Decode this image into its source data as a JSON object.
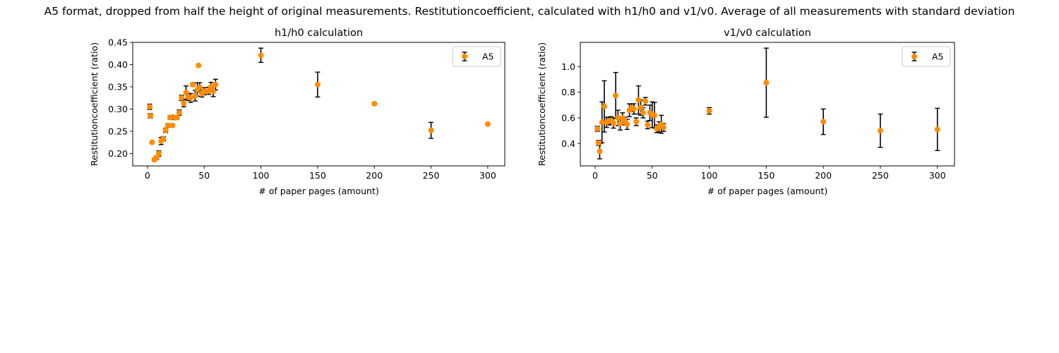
{
  "figure": {
    "suptitle": "A5 format, dropped from half the height of original measurements. Restitutioncoefficient, calculated with h1/h0 and v1/v0. Average of all measurements with standard deviation"
  },
  "colors": {
    "marker": "#ff8c00",
    "errorbar": "#000000",
    "axis": "#000000"
  },
  "chart_data": [
    {
      "type": "scatter",
      "title": "h1/h0 calculation",
      "xlabel": "# of paper pages (amount)",
      "ylabel": "Restitutioncoefficient (ratio)",
      "xlim": [
        -13,
        315
      ],
      "ylim": [
        0.172,
        0.45
      ],
      "xticks": [
        0,
        50,
        100,
        150,
        200,
        250,
        300
      ],
      "yticks": [
        0.2,
        0.25,
        0.3,
        0.35,
        0.4,
        0.45
      ],
      "ytick_labels": [
        "0.20",
        "0.25",
        "0.30",
        "0.35",
        "0.40",
        "0.45"
      ],
      "grid": false,
      "legend": {
        "position": "top-right",
        "entries": [
          "A5"
        ]
      },
      "series": [
        {
          "name": "A5",
          "x": [
            2,
            2.5,
            4,
            6,
            8,
            10,
            12,
            14,
            16,
            18,
            20,
            22,
            24,
            26,
            28,
            30,
            32,
            34,
            36,
            38,
            40,
            42,
            44,
            45,
            46,
            48,
            50,
            52,
            54,
            56,
            58,
            60,
            100,
            150,
            200,
            250,
            300
          ],
          "y": [
            0.305,
            0.285,
            0.225,
            0.186,
            0.19,
            0.2,
            0.228,
            0.233,
            0.252,
            0.263,
            0.281,
            0.263,
            0.281,
            0.281,
            0.292,
            0.325,
            0.313,
            0.337,
            0.327,
            0.325,
            0.355,
            0.33,
            0.344,
            0.398,
            0.349,
            0.335,
            0.34,
            0.339,
            0.341,
            0.35,
            0.34,
            0.355,
            0.421,
            0.355,
            0.312,
            0.252,
            0.266
          ],
          "err": [
            0.006,
            0.005,
            0.002,
            0.003,
            0.004,
            0.006,
            0.008,
            0.005,
            0.005,
            0.004,
            0.004,
            0.003,
            0.005,
            0.004,
            0.006,
            0.006,
            0.008,
            0.015,
            0.008,
            0.01,
            0.004,
            0.012,
            0.015,
            0.002,
            0.01,
            0.008,
            0.008,
            0.005,
            0.008,
            0.01,
            0.012,
            0.012,
            0.016,
            0.028,
            0.002,
            0.018,
            0.002
          ]
        }
      ]
    },
    {
      "type": "scatter",
      "title": "v1/v0 calculation",
      "xlabel": "# of paper pages (amount)",
      "ylabel": "Restitutioncoefficient (ratio)",
      "xlim": [
        -13,
        315
      ],
      "ylim": [
        0.225,
        1.19
      ],
      "xticks": [
        0,
        50,
        100,
        150,
        200,
        250,
        300
      ],
      "yticks": [
        0.4,
        0.6,
        0.8,
        1.0
      ],
      "ytick_labels": [
        "0.4",
        "0.6",
        "0.8",
        "1.0"
      ],
      "grid": false,
      "legend": {
        "position": "top-right",
        "entries": [
          "A5"
        ]
      },
      "series": [
        {
          "name": "A5",
          "x": [
            2,
            3,
            4,
            6,
            8,
            10,
            12,
            14,
            16,
            18,
            20,
            22,
            24,
            26,
            28,
            30,
            32,
            34,
            36,
            38,
            40,
            42,
            44,
            46,
            48,
            50,
            52,
            54,
            56,
            58,
            60,
            100,
            150,
            200,
            250,
            300
          ],
          "y": [
            0.515,
            0.405,
            0.34,
            0.565,
            0.69,
            0.565,
            0.575,
            0.58,
            0.56,
            0.775,
            0.6,
            0.555,
            0.6,
            0.575,
            0.55,
            0.66,
            0.68,
            0.67,
            0.57,
            0.74,
            0.68,
            0.64,
            0.73,
            0.545,
            0.64,
            0.625,
            0.62,
            0.515,
            0.53,
            0.55,
            0.525,
            0.655,
            0.875,
            0.57,
            0.5,
            0.51
          ],
          "err": [
            0.02,
            0.02,
            0.06,
            0.16,
            0.2,
            0.04,
            0.03,
            0.03,
            0.04,
            0.18,
            0.06,
            0.05,
            0.04,
            0.03,
            0.04,
            0.05,
            0.03,
            0.04,
            0.03,
            0.11,
            0.06,
            0.04,
            0.03,
            0.03,
            0.06,
            0.1,
            0.1,
            0.03,
            0.04,
            0.07,
            0.03,
            0.025,
            0.27,
            0.1,
            0.13,
            0.165
          ]
        }
      ]
    }
  ]
}
